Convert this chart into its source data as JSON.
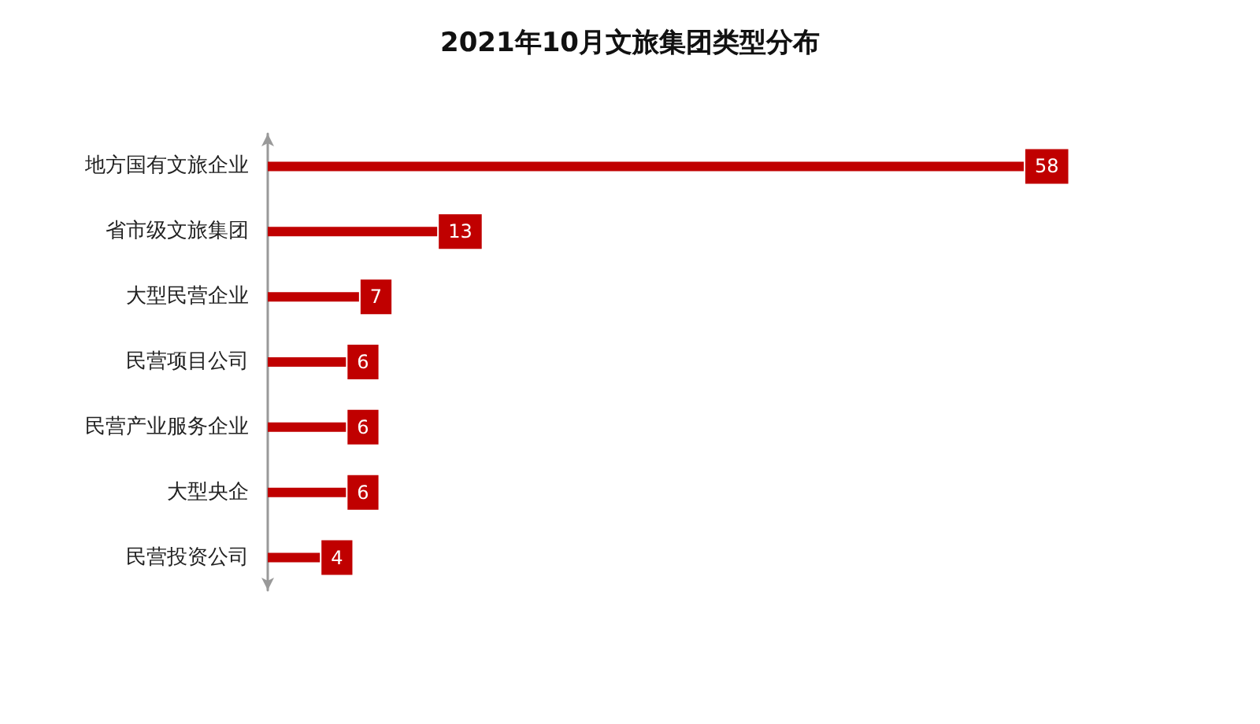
{
  "chart_data": {
    "type": "bar",
    "orientation": "horizontal",
    "title": "2021年10月文旅集团类型分布",
    "categories": [
      "地方国有文旅企业",
      "省市级文旅集团",
      "大型民营企业",
      "民营项目公司",
      "民营产业服务企业",
      "大型央企",
      "民营投资公司"
    ],
    "values": [
      58,
      13,
      7,
      6,
      6,
      6,
      4
    ],
    "color": "#c00000",
    "data_labels": true
  }
}
